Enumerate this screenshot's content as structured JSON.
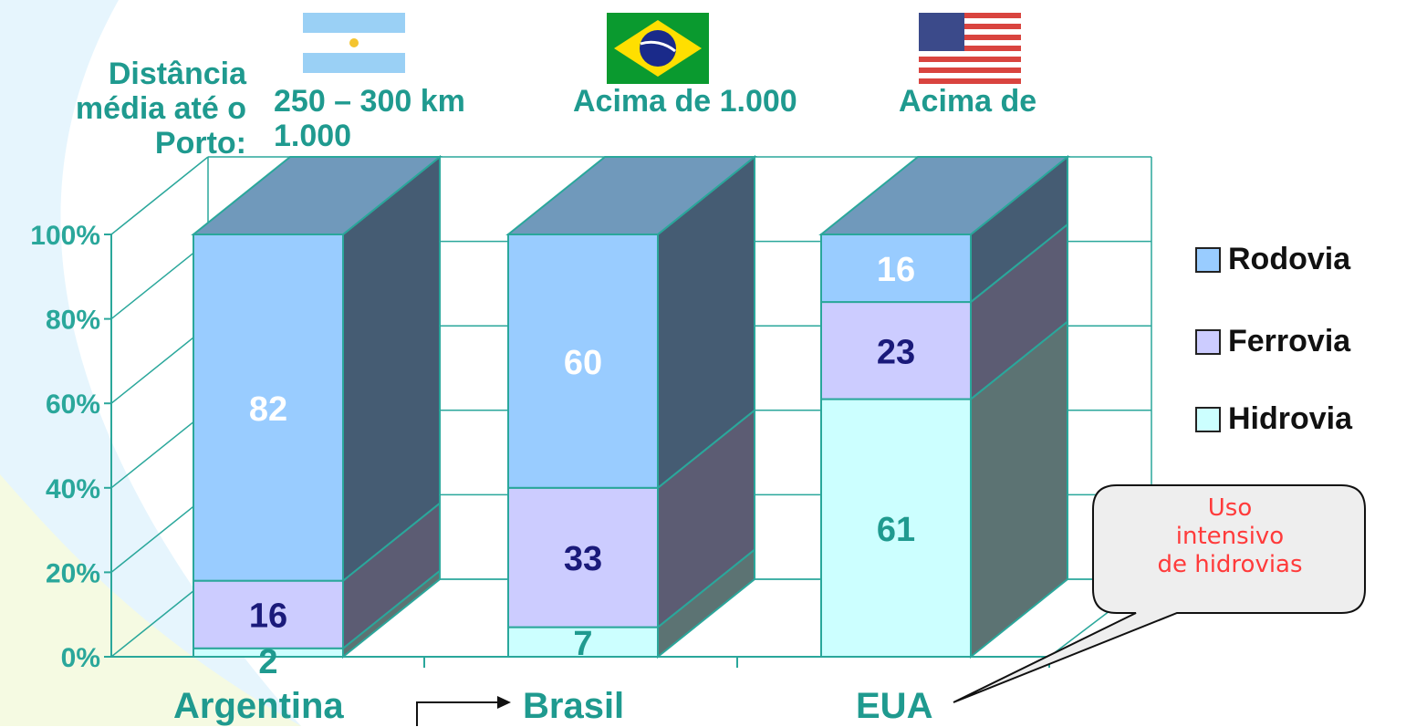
{
  "header": {
    "distance_title": "Distância média até o Porto:",
    "distances": [
      "250 – 300 km 1.000",
      "Acima de 1.000",
      "Acima de"
    ],
    "flags": [
      "argentina-flag-icon",
      "brazil-flag-icon",
      "usa-flag-icon"
    ]
  },
  "callout": {
    "lines": [
      "Uso",
      "intensivo",
      "de hidrovias"
    ]
  },
  "chart_data": {
    "type": "bar",
    "stacked": true,
    "three_d": true,
    "categories": [
      "Argentina",
      "Brasil",
      "EUA"
    ],
    "series": [
      {
        "name": "Hidrovia",
        "values": [
          2,
          7,
          61
        ],
        "color": "#ccffff",
        "label_color": "#1f9a8f"
      },
      {
        "name": "Ferrovia",
        "values": [
          16,
          33,
          23
        ],
        "color": "#ccccff",
        "label_color": "#1a1a7a"
      },
      {
        "name": "Rodovia",
        "values": [
          82,
          60,
          16
        ],
        "color": "#99ccff",
        "label_color": "#ffffff"
      }
    ],
    "ylim": [
      0,
      100
    ],
    "yticks": [
      "0%",
      "20%",
      "40%",
      "60%",
      "80%",
      "100%"
    ],
    "legend_position": "right",
    "grid": true
  }
}
